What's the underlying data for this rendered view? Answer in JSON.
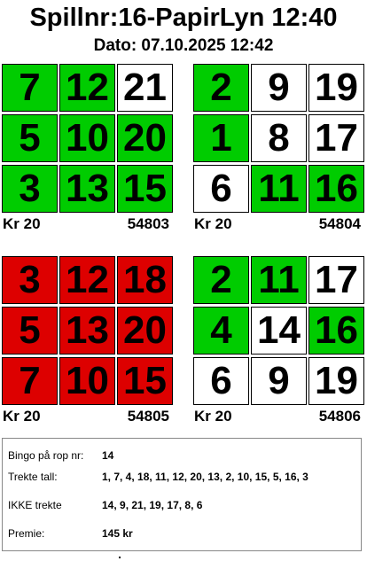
{
  "header": {
    "title": "Spillnr:16-PapirLyn 12:40",
    "date": "Dato: 07.10.2025 12:42"
  },
  "colors": {
    "green": "#00cc00",
    "red": "#dd0000",
    "white": "#ffffff"
  },
  "cards": [
    {
      "price": "Kr 20",
      "serial": "54803",
      "cells": [
        {
          "n": "7",
          "c": "green"
        },
        {
          "n": "12",
          "c": "green"
        },
        {
          "n": "21",
          "c": "white"
        },
        {
          "n": "5",
          "c": "green"
        },
        {
          "n": "10",
          "c": "green"
        },
        {
          "n": "20",
          "c": "green"
        },
        {
          "n": "3",
          "c": "green"
        },
        {
          "n": "13",
          "c": "green"
        },
        {
          "n": "15",
          "c": "green"
        }
      ]
    },
    {
      "price": "Kr 20",
      "serial": "54804",
      "cells": [
        {
          "n": "2",
          "c": "green"
        },
        {
          "n": "9",
          "c": "white"
        },
        {
          "n": "19",
          "c": "white"
        },
        {
          "n": "1",
          "c": "green"
        },
        {
          "n": "8",
          "c": "white"
        },
        {
          "n": "17",
          "c": "white"
        },
        {
          "n": "6",
          "c": "white"
        },
        {
          "n": "11",
          "c": "green"
        },
        {
          "n": "16",
          "c": "green"
        }
      ]
    },
    {
      "price": "Kr 20",
      "serial": "54805",
      "cells": [
        {
          "n": "3",
          "c": "red"
        },
        {
          "n": "12",
          "c": "red"
        },
        {
          "n": "18",
          "c": "red"
        },
        {
          "n": "5",
          "c": "red"
        },
        {
          "n": "13",
          "c": "red"
        },
        {
          "n": "20",
          "c": "red"
        },
        {
          "n": "7",
          "c": "red"
        },
        {
          "n": "10",
          "c": "red"
        },
        {
          "n": "15",
          "c": "red"
        }
      ]
    },
    {
      "price": "Kr 20",
      "serial": "54806",
      "cells": [
        {
          "n": "2",
          "c": "green"
        },
        {
          "n": "11",
          "c": "green"
        },
        {
          "n": "17",
          "c": "white"
        },
        {
          "n": "4",
          "c": "green"
        },
        {
          "n": "14",
          "c": "white"
        },
        {
          "n": "16",
          "c": "green"
        },
        {
          "n": "6",
          "c": "white"
        },
        {
          "n": "9",
          "c": "white"
        },
        {
          "n": "19",
          "c": "white"
        }
      ]
    }
  ],
  "info": {
    "bingo_label": "Bingo på rop nr:",
    "bingo_value": "14",
    "drawn_label": "Trekte tall:",
    "drawn_value": "1, 7, 4, 18, 11, 12, 20, 13, 2, 10, 15, 5, 16, 3",
    "not_drawn_label": "IKKE trekte",
    "not_drawn_value": "14, 9, 21, 19, 17, 8, 6",
    "prize_label": "Premie:",
    "prize_value": "145 kr"
  }
}
